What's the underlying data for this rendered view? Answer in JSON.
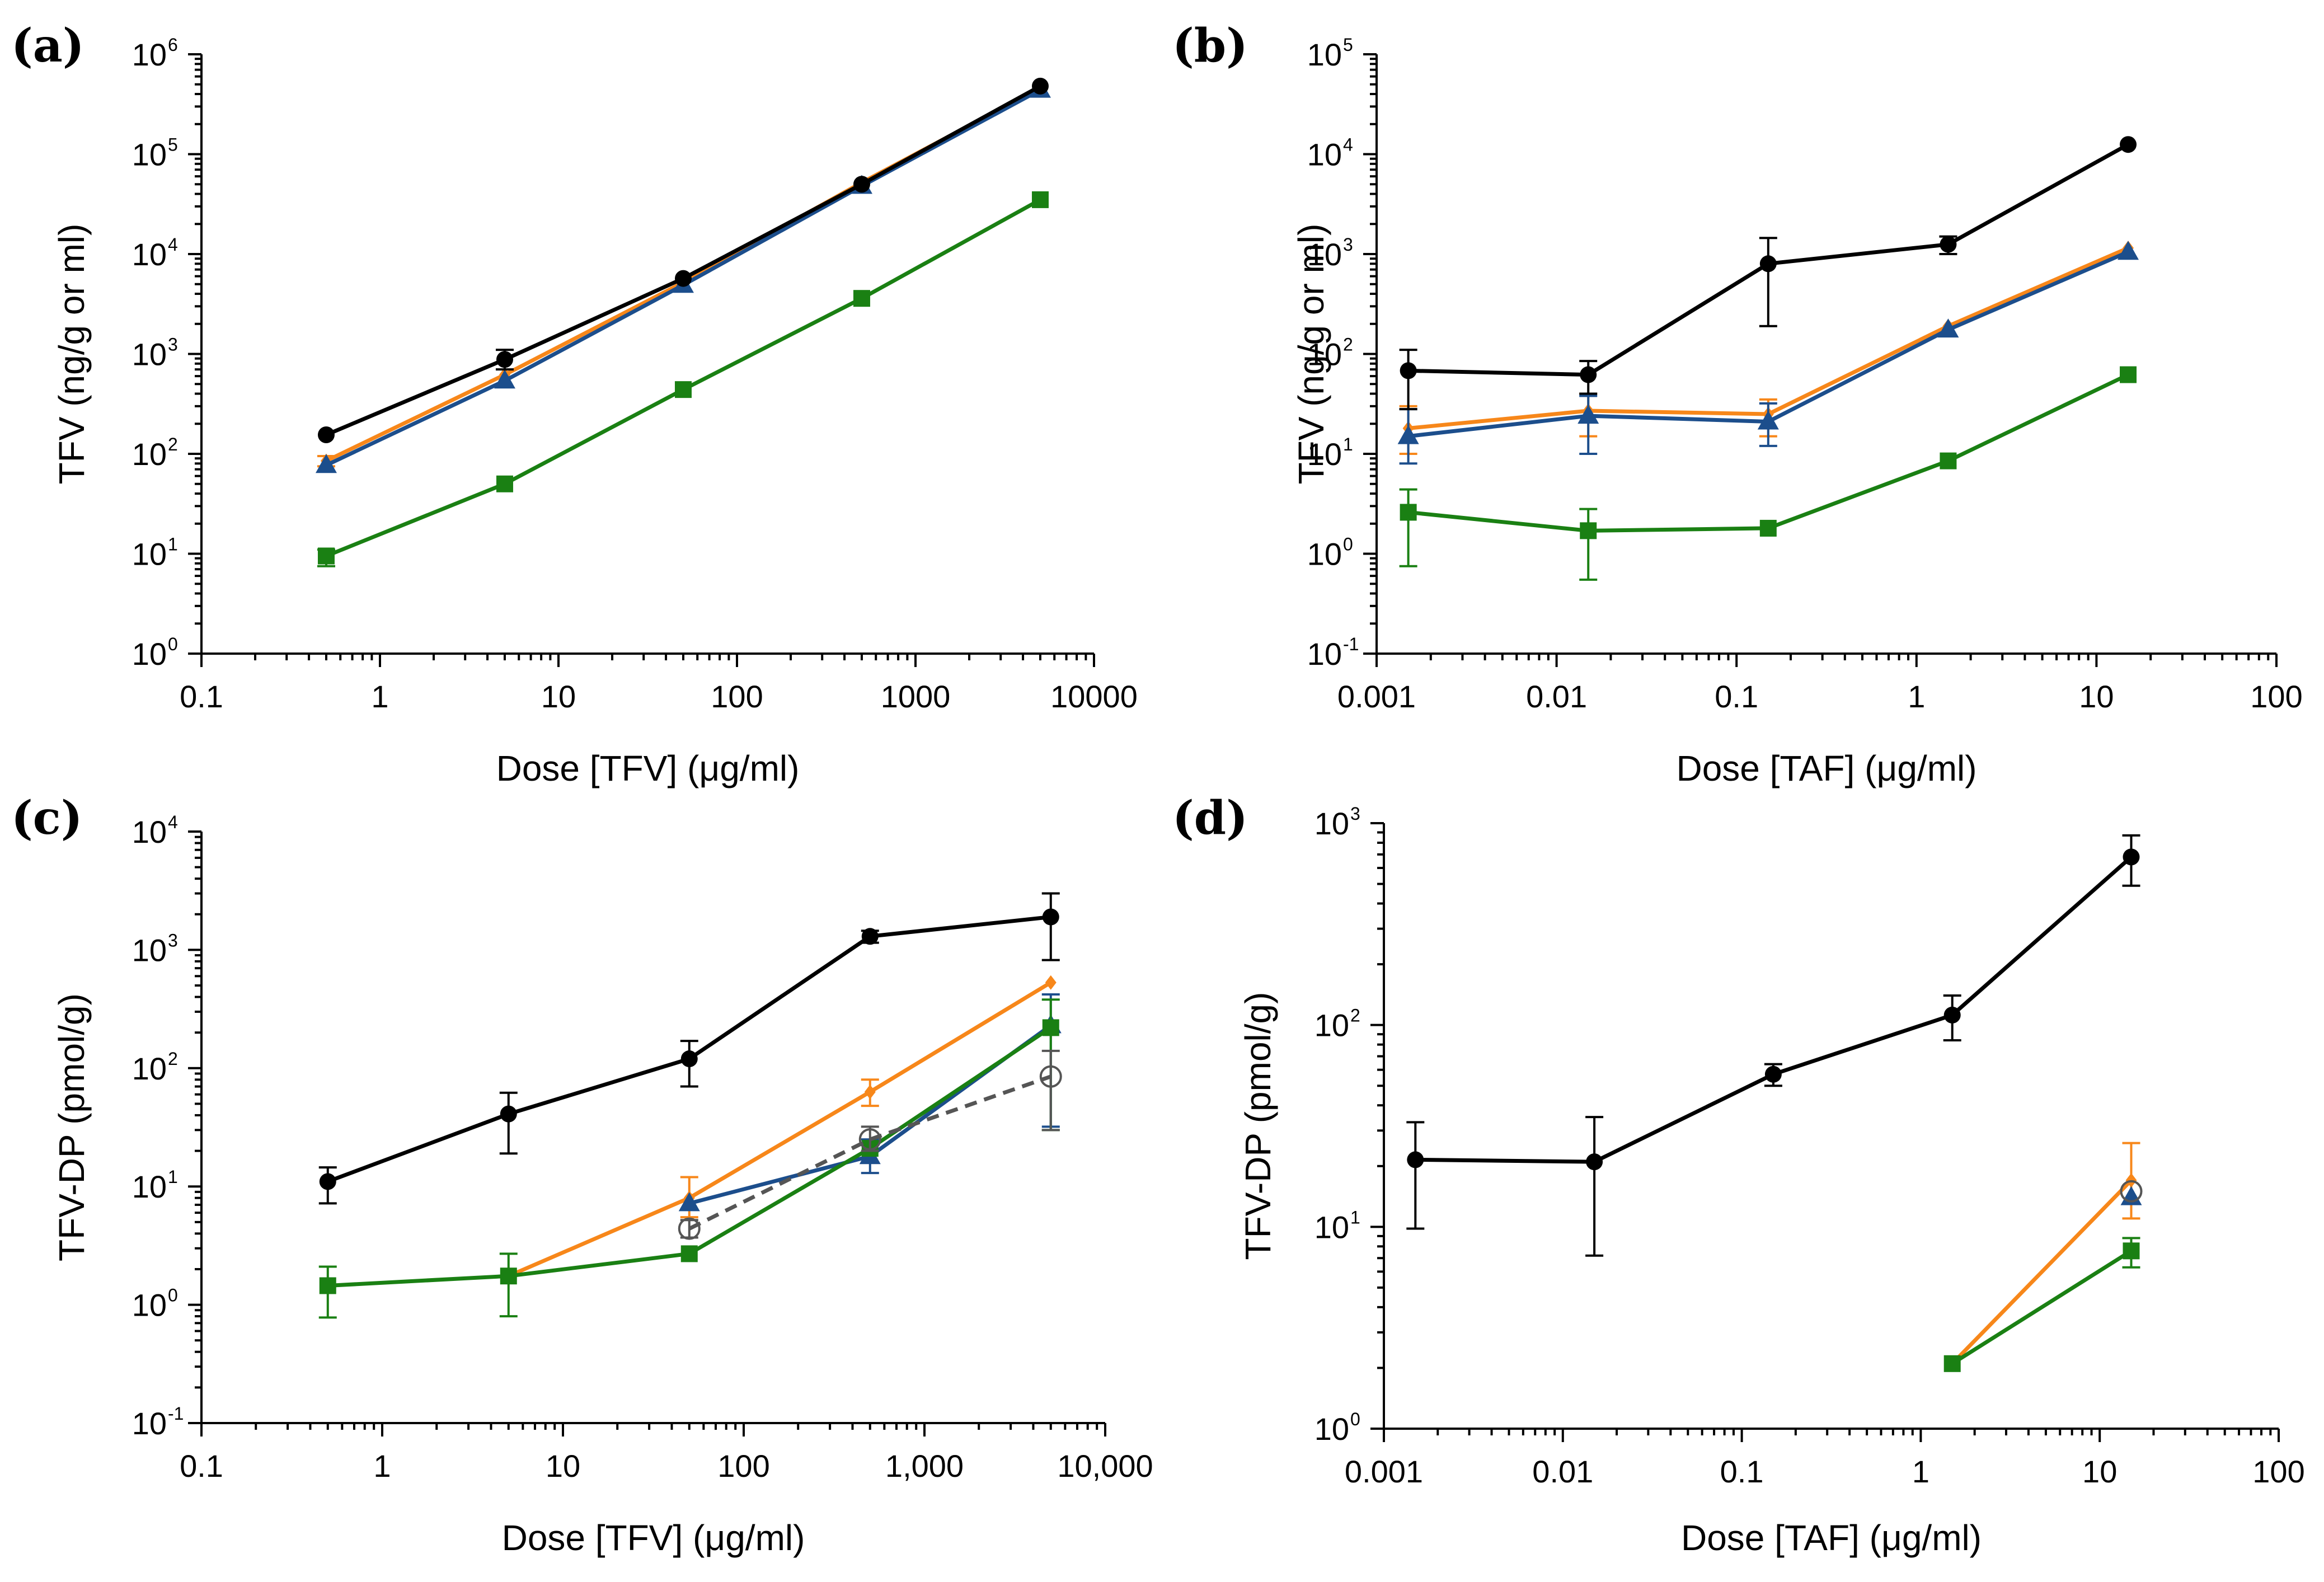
{
  "chart_data": [
    {
      "id": "a",
      "type": "line",
      "panel_label": "(a)",
      "xlabel": "Dose [TFV] (μg/ml)",
      "ylabel": "TFV (ng/g or ml)",
      "xscale": "log",
      "yscale": "log",
      "xlim": [
        0.1,
        10000
      ],
      "ylim": [
        1,
        1000000
      ],
      "xticks": [
        {
          "v": 0.1,
          "label": "0.1"
        },
        {
          "v": 1,
          "label": "1"
        },
        {
          "v": 10,
          "label": "10"
        },
        {
          "v": 100,
          "label": "100"
        },
        {
          "v": 1000,
          "label": "1000"
        },
        {
          "v": 10000,
          "label": "10000"
        }
      ],
      "yticks": [
        {
          "v": 1,
          "base": "10",
          "exp": "0"
        },
        {
          "v": 10,
          "base": "10",
          "exp": "1"
        },
        {
          "v": 100,
          "base": "10",
          "exp": "2"
        },
        {
          "v": 1000,
          "base": "10",
          "exp": "3"
        },
        {
          "v": 10000,
          "base": "10",
          "exp": "4"
        },
        {
          "v": 100000,
          "base": "10",
          "exp": "5"
        },
        {
          "v": 1000000,
          "base": "10",
          "exp": "6"
        }
      ],
      "series": [
        {
          "name": "orange",
          "color": "#F7871A",
          "marker": "diamond",
          "dash": false,
          "points": [
            {
              "x": 0.5,
              "y": 85,
              "lo": 75,
              "hi": 95
            },
            {
              "x": 5,
              "y": 620
            },
            {
              "x": 50,
              "y": 5200
            },
            {
              "x": 500,
              "y": 52000
            },
            {
              "x": 5000,
              "y": 460000
            }
          ]
        },
        {
          "name": "blue",
          "color": "#1C4E8C",
          "marker": "triangle",
          "dash": false,
          "points": [
            {
              "x": 0.5,
              "y": 77
            },
            {
              "x": 5,
              "y": 540
            },
            {
              "x": 50,
              "y": 4900
            },
            {
              "x": 500,
              "y": 48000
            },
            {
              "x": 5000,
              "y": 440000
            }
          ]
        },
        {
          "name": "green",
          "color": "#1A8013",
          "marker": "square",
          "dash": false,
          "points": [
            {
              "x": 0.5,
              "y": 9.5,
              "lo": 7.5,
              "hi": 11
            },
            {
              "x": 5,
              "y": 50
            },
            {
              "x": 50,
              "y": 440
            },
            {
              "x": 500,
              "y": 3600
            },
            {
              "x": 5000,
              "y": 35000
            }
          ]
        },
        {
          "name": "black",
          "color": "#000000",
          "marker": "circle",
          "dash": false,
          "points": [
            {
              "x": 0.5,
              "y": 155
            },
            {
              "x": 5,
              "y": 880,
              "lo": 700,
              "hi": 1100
            },
            {
              "x": 50,
              "y": 5700
            },
            {
              "x": 500,
              "y": 50000
            },
            {
              "x": 5000,
              "y": 480000
            }
          ]
        }
      ]
    },
    {
      "id": "b",
      "type": "line",
      "panel_label": "(b)",
      "xlabel": "Dose [TAF] (μg/ml)",
      "ylabel": "TFV (ng/g or ml)",
      "xscale": "log",
      "yscale": "log",
      "xlim": [
        0.001,
        100
      ],
      "ylim": [
        0.1,
        100000
      ],
      "xticks": [
        {
          "v": 0.001,
          "label": "0.001"
        },
        {
          "v": 0.01,
          "label": "0.01"
        },
        {
          "v": 0.1,
          "label": "0.1"
        },
        {
          "v": 1,
          "label": "1"
        },
        {
          "v": 10,
          "label": "10"
        },
        {
          "v": 100,
          "label": "100"
        }
      ],
      "yticks": [
        {
          "v": 0.1,
          "base": "10",
          "exp": "-1"
        },
        {
          "v": 1,
          "base": "10",
          "exp": "0"
        },
        {
          "v": 10,
          "base": "10",
          "exp": "1"
        },
        {
          "v": 100,
          "base": "10",
          "exp": "2"
        },
        {
          "v": 1000,
          "base": "10",
          "exp": "3"
        },
        {
          "v": 10000,
          "base": "10",
          "exp": "4"
        },
        {
          "v": 100000,
          "base": "10",
          "exp": "5"
        }
      ],
      "series": [
        {
          "name": "orange",
          "color": "#F7871A",
          "marker": "diamond",
          "dash": false,
          "points": [
            {
              "x": 0.0015,
              "y": 18,
              "lo": 10,
              "hi": 30
            },
            {
              "x": 0.015,
              "y": 27,
              "lo": 15,
              "hi": 40
            },
            {
              "x": 0.15,
              "y": 25,
              "lo": 15,
              "hi": 35
            },
            {
              "x": 1.5,
              "y": 190
            },
            {
              "x": 15,
              "y": 1150
            }
          ]
        },
        {
          "name": "blue",
          "color": "#1C4E8C",
          "marker": "triangle",
          "dash": false,
          "points": [
            {
              "x": 0.0015,
              "y": 15,
              "lo": 8,
              "hi": 28
            },
            {
              "x": 0.015,
              "y": 24,
              "lo": 10,
              "hi": 38
            },
            {
              "x": 0.15,
              "y": 21,
              "lo": 12,
              "hi": 32
            },
            {
              "x": 1.5,
              "y": 175
            },
            {
              "x": 15,
              "y": 1050
            }
          ]
        },
        {
          "name": "green",
          "color": "#1A8013",
          "marker": "square",
          "dash": false,
          "points": [
            {
              "x": 0.0015,
              "y": 2.6,
              "lo": 0.75,
              "hi": 4.4
            },
            {
              "x": 0.015,
              "y": 1.7,
              "lo": 0.55,
              "hi": 2.8
            },
            {
              "x": 0.15,
              "y": 1.8
            },
            {
              "x": 1.5,
              "y": 8.5
            },
            {
              "x": 15,
              "y": 62
            }
          ]
        },
        {
          "name": "black",
          "color": "#000000",
          "marker": "circle",
          "dash": false,
          "points": [
            {
              "x": 0.0015,
              "y": 68,
              "lo": 28,
              "hi": 110
            },
            {
              "x": 0.015,
              "y": 62,
              "lo": 40,
              "hi": 85
            },
            {
              "x": 0.15,
              "y": 800,
              "lo": 190,
              "hi": 1450
            },
            {
              "x": 1.5,
              "y": 1250,
              "lo": 1000,
              "hi": 1500
            },
            {
              "x": 15,
              "y": 12500
            }
          ]
        }
      ]
    },
    {
      "id": "c",
      "type": "line",
      "panel_label": "(c)",
      "xlabel": "Dose [TFV] (μg/ml)",
      "ylabel": "TFV-DP (pmol/g)",
      "xscale": "log",
      "yscale": "log",
      "xlim": [
        0.1,
        10000
      ],
      "ylim": [
        0.1,
        10000
      ],
      "xticks": [
        {
          "v": 0.1,
          "label": "0.1"
        },
        {
          "v": 1,
          "label": "1"
        },
        {
          "v": 10,
          "label": "10"
        },
        {
          "v": 100,
          "label": "100"
        },
        {
          "v": 1000,
          "label": "1,000"
        },
        {
          "v": 10000,
          "label": "10,000"
        }
      ],
      "yticks": [
        {
          "v": 0.1,
          "base": "10",
          "exp": "-1"
        },
        {
          "v": 1,
          "base": "10",
          "exp": "0"
        },
        {
          "v": 10,
          "base": "10",
          "exp": "1"
        },
        {
          "v": 100,
          "base": "10",
          "exp": "2"
        },
        {
          "v": 1000,
          "base": "10",
          "exp": "3"
        },
        {
          "v": 10000,
          "base": "10",
          "exp": "4"
        }
      ],
      "series": [
        {
          "name": "orange",
          "color": "#F7871A",
          "marker": "diamond",
          "dash": false,
          "points": [
            {
              "x": 5,
              "y": 1.75
            },
            {
              "x": 50,
              "y": 8,
              "lo": 5.5,
              "hi": 12
            },
            {
              "x": 500,
              "y": 63,
              "lo": 48,
              "hi": 80
            },
            {
              "x": 5000,
              "y": 530
            }
          ]
        },
        {
          "name": "blue",
          "color": "#1C4E8C",
          "marker": "triangle",
          "dash": false,
          "points": [
            {
              "x": 50,
              "y": 7.2
            },
            {
              "x": 500,
              "y": 18,
              "lo": 13,
              "hi": 25
            },
            {
              "x": 5000,
              "y": 230,
              "lo": 32,
              "hi": 420
            }
          ]
        },
        {
          "name": "green",
          "color": "#1A8013",
          "marker": "square",
          "dash": false,
          "points": [
            {
              "x": 0.5,
              "y": 1.45,
              "lo": 0.78,
              "hi": 2.1
            },
            {
              "x": 5,
              "y": 1.75,
              "lo": 0.8,
              "hi": 2.7
            },
            {
              "x": 50,
              "y": 2.7
            },
            {
              "x": 500,
              "y": 21
            },
            {
              "x": 5000,
              "y": 220,
              "lo": 30,
              "hi": 380
            }
          ]
        },
        {
          "name": "gray-open",
          "color": "#555555",
          "marker": "open-circle",
          "dash": true,
          "points": [
            {
              "x": 50,
              "y": 4.4,
              "lo": 3.7,
              "hi": 5.2
            },
            {
              "x": 500,
              "y": 25,
              "lo": 20,
              "hi": 32
            },
            {
              "x": 5000,
              "y": 85,
              "lo": 30,
              "hi": 140
            }
          ]
        },
        {
          "name": "black",
          "color": "#000000",
          "marker": "circle",
          "dash": false,
          "points": [
            {
              "x": 0.5,
              "y": 11,
              "lo": 7.2,
              "hi": 14.5
            },
            {
              "x": 5,
              "y": 41,
              "lo": 19,
              "hi": 62
            },
            {
              "x": 50,
              "y": 120,
              "lo": 70,
              "hi": 170
            },
            {
              "x": 500,
              "y": 1300,
              "lo": 1150,
              "hi": 1450
            },
            {
              "x": 5000,
              "y": 1900,
              "lo": 820,
              "hi": 3000
            }
          ]
        }
      ]
    },
    {
      "id": "d",
      "type": "line",
      "panel_label": "(d)",
      "xlabel": "Dose [TAF] (μg/ml)",
      "ylabel": "TFV-DP (pmol/g)",
      "xscale": "log",
      "yscale": "log",
      "xlim": [
        0.001,
        100
      ],
      "ylim": [
        1,
        1000
      ],
      "xticks": [
        {
          "v": 0.001,
          "label": "0.001"
        },
        {
          "v": 0.01,
          "label": "0.01"
        },
        {
          "v": 0.1,
          "label": "0.1"
        },
        {
          "v": 1,
          "label": "1"
        },
        {
          "v": 10,
          "label": "10"
        },
        {
          "v": 100,
          "label": "100"
        }
      ],
      "yticks": [
        {
          "v": 1,
          "base": "10",
          "exp": "0"
        },
        {
          "v": 10,
          "base": "10",
          "exp": "1"
        },
        {
          "v": 100,
          "base": "10",
          "exp": "2"
        },
        {
          "v": 1000,
          "base": "10",
          "exp": "3"
        }
      ],
      "series": [
        {
          "name": "orange",
          "color": "#F7871A",
          "marker": "diamond",
          "dash": false,
          "points": [
            {
              "x": 1.5,
              "y": 2.1
            },
            {
              "x": 15,
              "y": 17,
              "lo": 11,
              "hi": 26
            }
          ]
        },
        {
          "name": "blue",
          "color": "#1C4E8C",
          "marker": "triangle",
          "dash": false,
          "points": [
            {
              "x": 15,
              "y": 14
            }
          ]
        },
        {
          "name": "gray-open",
          "color": "#555555",
          "marker": "open-circle",
          "dash": false,
          "points": [
            {
              "x": 15,
              "y": 15
            }
          ]
        },
        {
          "name": "green",
          "color": "#1A8013",
          "marker": "square",
          "dash": false,
          "points": [
            {
              "x": 1.5,
              "y": 2.1
            },
            {
              "x": 15,
              "y": 7.6,
              "lo": 6.3,
              "hi": 8.8
            }
          ]
        },
        {
          "name": "black",
          "color": "#000000",
          "marker": "circle",
          "dash": false,
          "points": [
            {
              "x": 0.0015,
              "y": 21.5,
              "lo": 9.8,
              "hi": 33
            },
            {
              "x": 0.015,
              "y": 21,
              "lo": 7.2,
              "hi": 35
            },
            {
              "x": 0.15,
              "y": 57,
              "lo": 50,
              "hi": 64
            },
            {
              "x": 1.5,
              "y": 112,
              "lo": 84,
              "hi": 140
            },
            {
              "x": 15,
              "y": 680,
              "lo": 490,
              "hi": 870
            }
          ]
        }
      ]
    }
  ]
}
